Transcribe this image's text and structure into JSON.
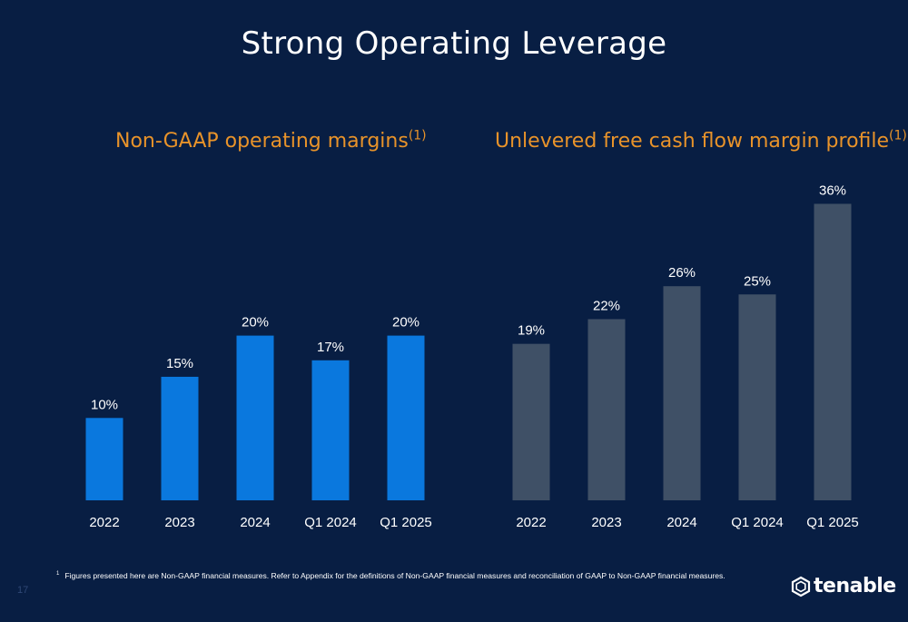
{
  "title": "Strong Operating Leverage",
  "footnote": {
    "marker": "1",
    "text": "Figures presented here are Non-GAAP financial measures. Refer to Appendix for the definitions of Non-GAAP financial measures and reconciliation of GAAP to Non-GAAP financial measures."
  },
  "page_number": "17",
  "logo": {
    "text": "tenable",
    "icon": "tenable-hexagon-logo-icon"
  },
  "chart_data": [
    {
      "type": "bar",
      "title": "Non-GAAP operating margins",
      "title_superscript": "(1)",
      "categories": [
        "2022",
        "2023",
        "2024",
        "Q1 2024",
        "Q1 2025"
      ],
      "values": [
        10,
        15,
        20,
        17,
        20
      ],
      "labels": [
        "10%",
        "15%",
        "20%",
        "17%",
        "20%"
      ],
      "unit": "%",
      "color": "#0a78de",
      "ylim": [
        0,
        36
      ],
      "grid": false
    },
    {
      "type": "bar",
      "title": "Unlevered free cash flow margin profile",
      "title_superscript": "(1)",
      "categories": [
        "2022",
        "2023",
        "2024",
        "Q1 2024",
        "Q1 2025"
      ],
      "values": [
        19,
        22,
        26,
        25,
        36
      ],
      "labels": [
        "19%",
        "22%",
        "26%",
        "25%",
        "36%"
      ],
      "unit": "%",
      "color": "#3f5066",
      "ylim": [
        0,
        36
      ],
      "grid": false
    }
  ]
}
